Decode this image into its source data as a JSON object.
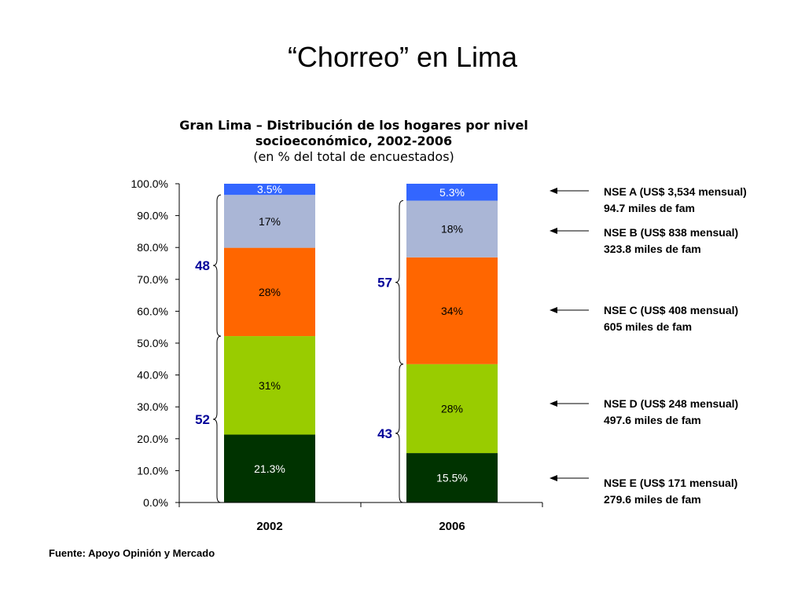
{
  "slide": {
    "title": "“Chorreo” en Lima",
    "source": "Fuente: Apoyo Opinión y Mercado"
  },
  "chart_data": {
    "type": "bar",
    "stacked": true,
    "title": "Gran Lima – Distribución de los hogares por nivel socioeconómico, 2002-2006",
    "subtitle": "(en % del total de encuestados)",
    "xlabel": "",
    "ylabel": "",
    "ylim": [
      0,
      100
    ],
    "yticks": [
      "0.0%",
      "10.0%",
      "20.0%",
      "30.0%",
      "40.0%",
      "50.0%",
      "60.0%",
      "70.0%",
      "80.0%",
      "90.0%",
      "100.0%"
    ],
    "categories": [
      "2002",
      "2006"
    ],
    "grid": false,
    "series": [
      {
        "name": "NSE E",
        "values": [
          21.3,
          15.5
        ],
        "labels": [
          "21.3%",
          "15.5%"
        ],
        "color": "#003300",
        "label_color": "#ffffff"
      },
      {
        "name": "NSE D",
        "values": [
          30.9,
          27.9
        ],
        "labels": [
          "31%",
          "28%"
        ],
        "color": "#99CC00",
        "label_color": "#000000"
      },
      {
        "name": "NSE C",
        "values": [
          27.7,
          33.5
        ],
        "labels": [
          "28%",
          "34%"
        ],
        "color": "#FF6600",
        "label_color": "#000000"
      },
      {
        "name": "NSE B",
        "values": [
          16.6,
          17.8
        ],
        "labels": [
          "17%",
          "18%"
        ],
        "color": "#AAB6D6",
        "label_color": "#000000"
      },
      {
        "name": "NSE A",
        "values": [
          3.5,
          5.3
        ],
        "labels": [
          "3.5%",
          "5.3%"
        ],
        "color": "#3366FF",
        "label_color": "#ffffff"
      }
    ],
    "brackets": [
      {
        "category": "2002",
        "from": 0,
        "to": 52.2,
        "label": "52"
      },
      {
        "category": "2002",
        "from": 52.2,
        "to": 96.5,
        "label": "48"
      },
      {
        "category": "2006",
        "from": 0,
        "to": 43.4,
        "label": "43"
      },
      {
        "category": "2006",
        "from": 43.4,
        "to": 94.7,
        "label": "57"
      }
    ],
    "bracket_color": "#000099",
    "legend": [
      {
        "line1": "NSE A (US$ 3,534 mensual)",
        "line2": "94.7 miles de fam",
        "points_to": "NSE A"
      },
      {
        "line1": "NSE B (US$ 838 mensual)",
        "line2": "323.8 miles de fam",
        "points_to": "NSE B"
      },
      {
        "line1": "NSE C (US$ 408 mensual)",
        "line2": "605 miles de fam",
        "points_to": "NSE C"
      },
      {
        "line1": "NSE D (US$ 248 mensual)",
        "line2": "497.6 miles de fam",
        "points_to": "NSE D"
      },
      {
        "line1": "NSE E (US$ 171 mensual)",
        "line2": "279.6 miles de fam",
        "points_to": "NSE E"
      }
    ]
  }
}
